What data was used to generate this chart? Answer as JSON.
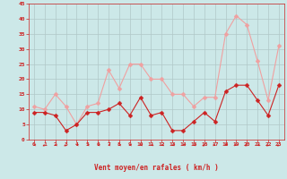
{
  "x": [
    0,
    1,
    2,
    3,
    4,
    5,
    6,
    7,
    8,
    9,
    10,
    11,
    12,
    13,
    14,
    15,
    16,
    17,
    18,
    19,
    20,
    21,
    22,
    23
  ],
  "wind_avg": [
    9,
    9,
    8,
    3,
    5,
    9,
    9,
    10,
    12,
    8,
    14,
    8,
    9,
    3,
    3,
    6,
    9,
    6,
    16,
    18,
    18,
    13,
    8,
    18
  ],
  "wind_gust": [
    11,
    10,
    15,
    11,
    5,
    11,
    12,
    23,
    17,
    25,
    25,
    20,
    20,
    15,
    15,
    11,
    14,
    14,
    35,
    41,
    38,
    26,
    13,
    31
  ],
  "wind_avg_color": "#cc2222",
  "wind_gust_color": "#f0a0a0",
  "bg_color": "#cce8e8",
  "grid_color": "#b0c8c8",
  "axis_color": "#cc2222",
  "xlabel": "Vent moyen/en rafales ( km/h )",
  "ylim": [
    0,
    45
  ],
  "yticks": [
    0,
    5,
    10,
    15,
    20,
    25,
    30,
    35,
    40,
    45
  ],
  "xticks": [
    0,
    1,
    2,
    3,
    4,
    5,
    6,
    7,
    8,
    9,
    10,
    11,
    12,
    13,
    14,
    15,
    16,
    17,
    18,
    19,
    20,
    21,
    22,
    23
  ],
  "marker_size": 2.5,
  "arrow_dirs": [
    180,
    225,
    180,
    225,
    180,
    180,
    180,
    180,
    180,
    180,
    180,
    180,
    180,
    180,
    180,
    180,
    225,
    0,
    45,
    0,
    225,
    180,
    225,
    225
  ]
}
